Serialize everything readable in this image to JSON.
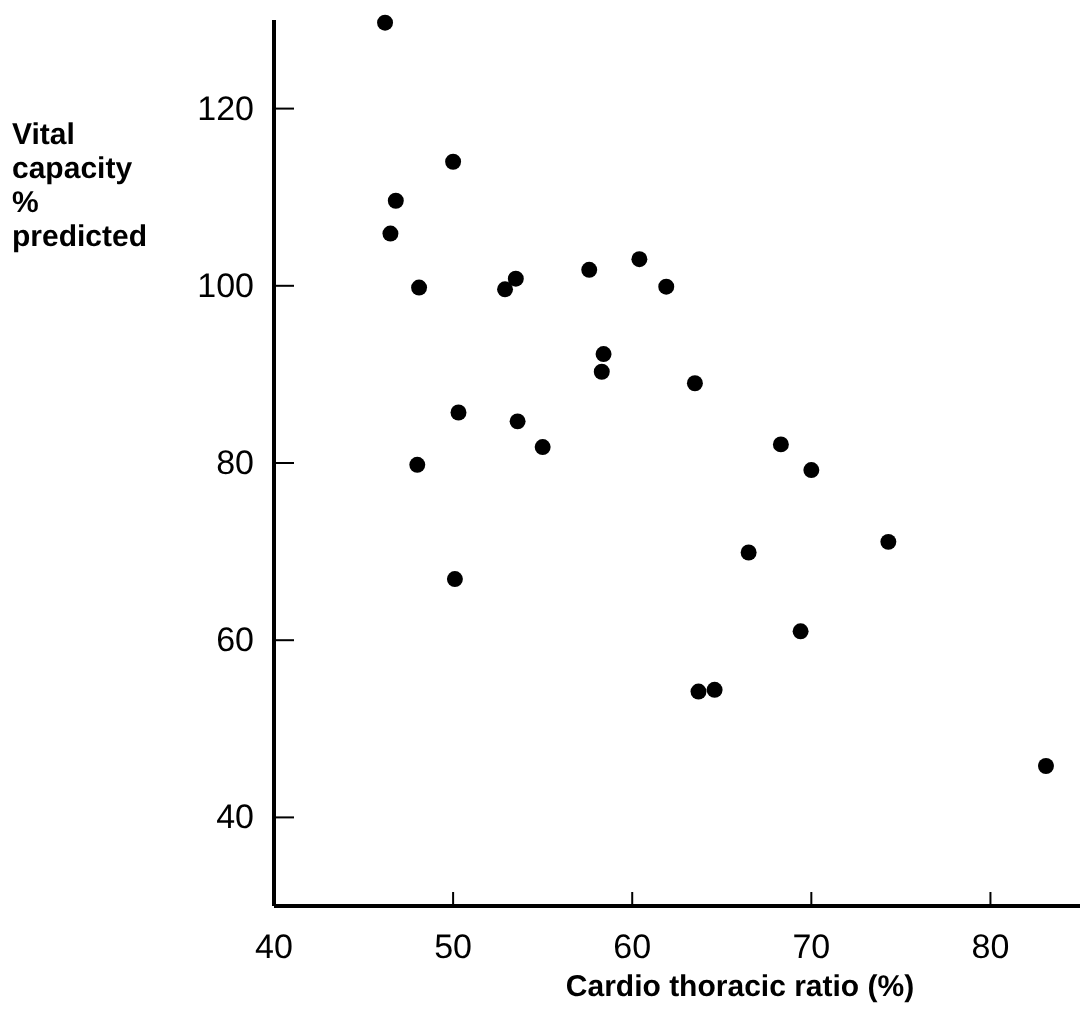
{
  "chart_data": {
    "type": "scatter",
    "xlabel": "Cardio thoracic ratio  (%)",
    "ylabel": "Vital capacity % predicted",
    "x": [
      46.2,
      50.0,
      46.8,
      46.5,
      48.1,
      52.9,
      53.5,
      57.6,
      60.4,
      61.9,
      58.4,
      58.3,
      50.3,
      53.6,
      55.0,
      48.0,
      50.1,
      63.5,
      68.3,
      70.0,
      66.5,
      74.3,
      69.4,
      63.7,
      64.6,
      83.1
    ],
    "values": [
      129.7,
      114.0,
      109.6,
      105.9,
      99.8,
      99.6,
      100.8,
      101.8,
      103.0,
      99.9,
      92.3,
      90.3,
      85.7,
      84.7,
      81.8,
      79.8,
      66.9,
      89.0,
      82.1,
      79.2,
      69.9,
      71.1,
      61.0,
      54.2,
      54.4,
      45.8
    ],
    "color": "#000000",
    "marker": "circle",
    "xlim": [
      40,
      85
    ],
    "xticks": [
      40,
      50,
      60,
      70,
      80
    ],
    "ylim": [
      30,
      130
    ],
    "yticks": [
      40,
      60,
      80,
      100,
      120
    ]
  }
}
